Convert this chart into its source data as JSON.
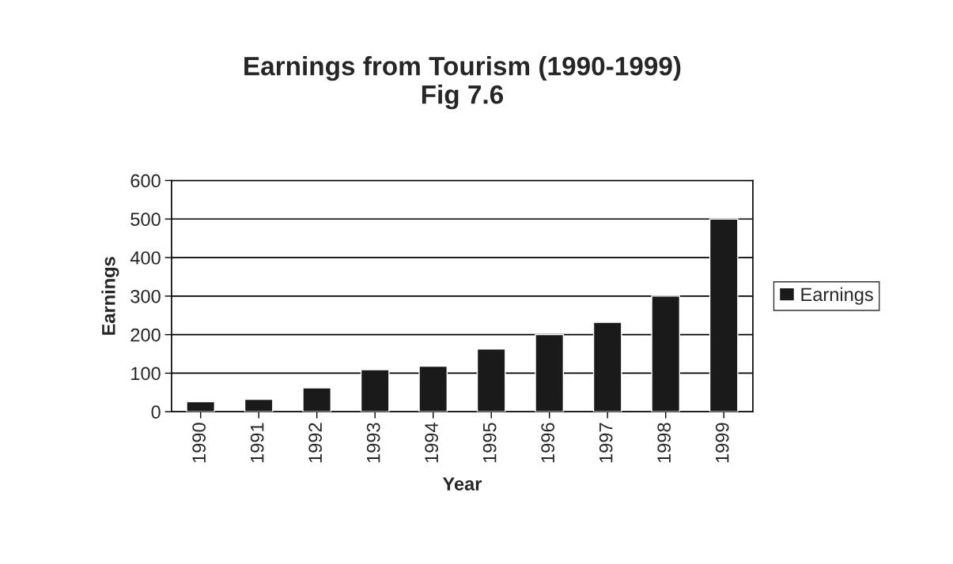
{
  "chart_data": {
    "type": "bar",
    "title": "Earnings from Tourism (1990-1999)\nFig 7.6",
    "xlabel": "Year",
    "ylabel": "Earnings",
    "categories": [
      "1990",
      "1991",
      "1992",
      "1993",
      "1994",
      "1995",
      "1996",
      "1997",
      "1998",
      "1999"
    ],
    "series": [
      {
        "name": "Earnings",
        "color": "#1a1a1a",
        "values": [
          26,
          32,
          62,
          109,
          118,
          163,
          200,
          232,
          300,
          500
        ]
      }
    ],
    "ylim": [
      0,
      600
    ],
    "yticks": [
      0,
      100,
      200,
      300,
      400,
      500,
      600
    ],
    "grid": "y",
    "legend": "right"
  }
}
